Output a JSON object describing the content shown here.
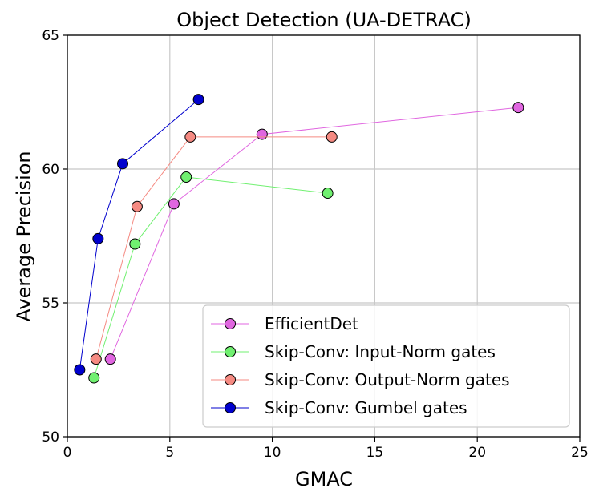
{
  "chart_data": {
    "type": "line",
    "title": "Object Detection (UA-DETRAC)",
    "xlabel": "GMAC",
    "ylabel": "Average Precision",
    "xlim": [
      0,
      25
    ],
    "ylim": [
      50,
      65
    ],
    "xticks": [
      "0",
      "5",
      "10",
      "15",
      "20",
      "25"
    ],
    "yticks": [
      "50",
      "55",
      "60",
      "65"
    ],
    "grid": true,
    "legend_position": "lower-right",
    "series": [
      {
        "name": "EfficientDet",
        "color": "#e066e0",
        "points": [
          [
            2.1,
            52.9
          ],
          [
            5.2,
            58.7
          ],
          [
            9.5,
            61.3
          ],
          [
            22.0,
            62.3
          ]
        ]
      },
      {
        "name": "Skip-Conv: Input-Norm gates",
        "color": "#70f070",
        "points": [
          [
            1.3,
            52.2
          ],
          [
            3.3,
            57.2
          ],
          [
            5.8,
            59.7
          ],
          [
            12.7,
            59.1
          ]
        ]
      },
      {
        "name": "Skip-Conv: Output-Norm gates",
        "color": "#f58a82",
        "points": [
          [
            1.4,
            52.9
          ],
          [
            3.4,
            58.6
          ],
          [
            6.0,
            61.2
          ],
          [
            12.9,
            61.2
          ]
        ]
      },
      {
        "name": "Skip-Conv: Gumbel gates",
        "color": "#0000cd",
        "points": [
          [
            0.6,
            52.5
          ],
          [
            1.5,
            57.4
          ],
          [
            2.7,
            60.2
          ],
          [
            6.4,
            62.6
          ]
        ]
      }
    ]
  }
}
